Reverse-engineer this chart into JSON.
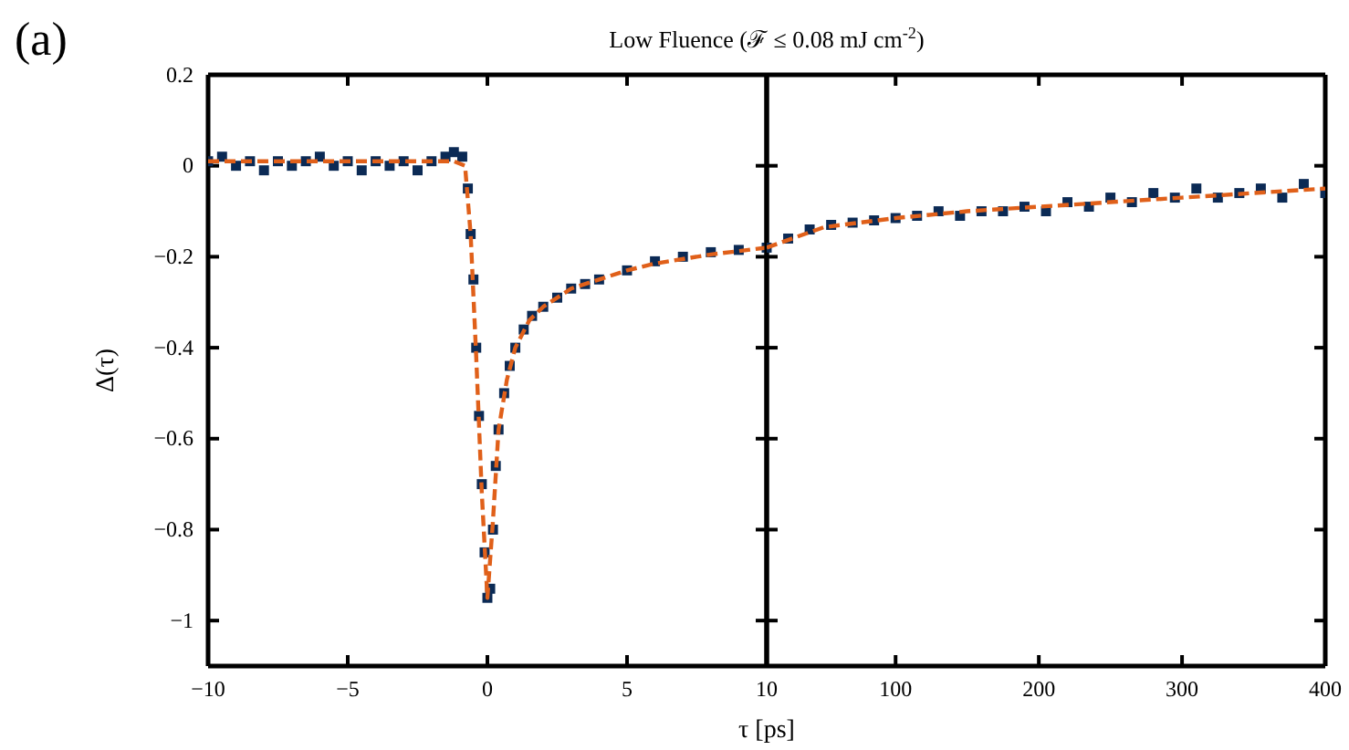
{
  "chart_data": [
    {
      "type": "scatter",
      "title": "Low Fluence (ℱ ≤ 0.08 mJ cm$^{-2}$)",
      "xlabel": "τ [ps]",
      "ylabel": "Δ(τ)",
      "annotations": [
        "(a)"
      ],
      "xlim": [
        -10,
        10
      ],
      "xticks": [
        -10,
        -5,
        0,
        5,
        10
      ],
      "ylim": [
        -1.1,
        0.2
      ],
      "yticks": [
        0.2,
        0,
        -0.2,
        -0.4,
        -0.6,
        -0.8,
        -1
      ],
      "series": [
        {
          "type": "scatter",
          "marker": "square",
          "color": "#0b2a55",
          "x": [
            -10,
            -9.5,
            -9,
            -8.5,
            -8,
            -7.5,
            -7,
            -6.5,
            -6,
            -5.5,
            -5,
            -4.5,
            -4,
            -3.5,
            -3,
            -2.5,
            -2,
            -1.5,
            -1.2,
            -0.9,
            -0.7,
            -0.6,
            -0.5,
            -0.4,
            -0.3,
            -0.2,
            -0.1,
            0,
            0.1,
            0.2,
            0.3,
            0.4,
            0.6,
            0.8,
            1,
            1.3,
            1.6,
            2,
            2.5,
            3,
            3.5,
            4,
            5,
            6,
            7,
            8,
            9,
            10
          ],
          "values": [
            0.01,
            0.02,
            0,
            0.01,
            -0.01,
            0.01,
            0,
            0.01,
            0.02,
            0,
            0.01,
            -0.01,
            0.01,
            0,
            0.01,
            -0.01,
            0.01,
            0.02,
            0.03,
            0.02,
            -0.05,
            -0.15,
            -0.25,
            -0.4,
            -0.55,
            -0.7,
            -0.85,
            -0.95,
            -0.93,
            -0.8,
            -0.66,
            -0.58,
            -0.5,
            -0.44,
            -0.4,
            -0.36,
            -0.33,
            -0.31,
            -0.29,
            -0.27,
            -0.26,
            -0.25,
            -0.23,
            -0.21,
            -0.2,
            -0.19,
            -0.185,
            -0.18
          ]
        },
        {
          "type": "line",
          "line_style": "dashed",
          "color": "#e0601a",
          "x": [
            -10,
            -1.2,
            -0.8,
            -0.6,
            -0.4,
            -0.2,
            0,
            0.2,
            0.4,
            0.7,
            1,
            1.5,
            2,
            3,
            4,
            5,
            6,
            8,
            10
          ],
          "values": [
            0.01,
            0.01,
            0,
            -0.15,
            -0.42,
            -0.72,
            -0.95,
            -0.78,
            -0.58,
            -0.47,
            -0.4,
            -0.34,
            -0.31,
            -0.27,
            -0.25,
            -0.23,
            -0.215,
            -0.195,
            -0.18
          ]
        }
      ]
    },
    {
      "type": "scatter",
      "tick_labels": "x",
      "xlim": [
        10,
        400
      ],
      "xticks": [
        100,
        200,
        300,
        400
      ],
      "ylim": [
        -1.1,
        0.2
      ],
      "yticks": [
        0.2,
        0,
        -0.2,
        -0.4,
        -0.6,
        -0.8,
        -1
      ],
      "series": [
        {
          "type": "scatter",
          "marker": "square",
          "color": "#0b2a55",
          "x": [
            10,
            25,
            40,
            55,
            70,
            85,
            100,
            115,
            130,
            145,
            160,
            175,
            190,
            205,
            220,
            235,
            250,
            265,
            280,
            295,
            310,
            325,
            340,
            355,
            370,
            385,
            400
          ],
          "values": [
            -0.18,
            -0.16,
            -0.14,
            -0.13,
            -0.125,
            -0.12,
            -0.115,
            -0.11,
            -0.1,
            -0.11,
            -0.1,
            -0.1,
            -0.09,
            -0.1,
            -0.08,
            -0.09,
            -0.07,
            -0.08,
            -0.06,
            -0.07,
            -0.05,
            -0.07,
            -0.06,
            -0.05,
            -0.07,
            -0.04,
            -0.06
          ]
        },
        {
          "type": "line",
          "line_style": "dashed",
          "color": "#e0601a",
          "x": [
            10,
            50,
            100,
            150,
            200,
            250,
            300,
            350,
            400
          ],
          "values": [
            -0.18,
            -0.135,
            -0.115,
            -0.1,
            -0.09,
            -0.08,
            -0.07,
            -0.06,
            -0.05
          ]
        }
      ]
    }
  ]
}
